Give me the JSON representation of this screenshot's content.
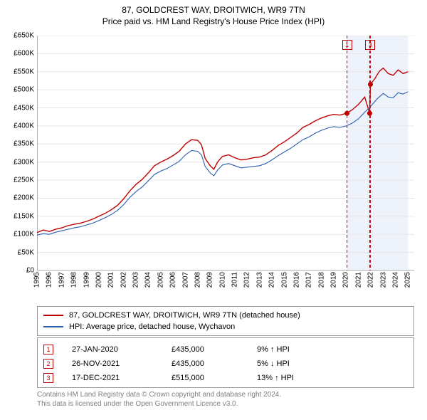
{
  "title": "87, GOLDCREST WAY, DROITWICH, WR9 7TN",
  "subtitle": "Price paid vs. HM Land Registry's House Price Index (HPI)",
  "chart": {
    "type": "line",
    "background_color": "#ffffff",
    "grid_color": "#e6e6e6",
    "axis_color": "#666666",
    "shaded_band": {
      "x_from": 2020.07,
      "x_to": 2025.0,
      "fill": "#eef3fb"
    },
    "x": {
      "min": 1995,
      "max": 2025.5,
      "ticks": [
        1995,
        1996,
        1997,
        1998,
        1999,
        2000,
        2001,
        2002,
        2003,
        2004,
        2005,
        2006,
        2007,
        2008,
        2009,
        2010,
        2011,
        2012,
        2013,
        2014,
        2015,
        2016,
        2017,
        2018,
        2019,
        2020,
        2021,
        2022,
        2023,
        2024,
        2025
      ]
    },
    "y": {
      "min": 0,
      "max": 650000,
      "tick_step": 50000,
      "prefix": "£",
      "suffix": "K",
      "divisor": 1000
    },
    "series": [
      {
        "name": "87, GOLDCREST WAY, DROITWICH, WR9 7TN (detached house)",
        "color": "#c00000",
        "width": 1.4,
        "points": [
          [
            1995,
            105000
          ],
          [
            1995.5,
            112000
          ],
          [
            1996,
            108000
          ],
          [
            1996.5,
            114000
          ],
          [
            1997,
            118000
          ],
          [
            1997.5,
            124000
          ],
          [
            1998,
            128000
          ],
          [
            1998.5,
            131000
          ],
          [
            1999,
            136000
          ],
          [
            1999.5,
            142000
          ],
          [
            2000,
            150000
          ],
          [
            2000.5,
            158000
          ],
          [
            2001,
            168000
          ],
          [
            2001.5,
            180000
          ],
          [
            2002,
            198000
          ],
          [
            2002.5,
            220000
          ],
          [
            2003,
            238000
          ],
          [
            2003.5,
            252000
          ],
          [
            2004,
            270000
          ],
          [
            2004.5,
            290000
          ],
          [
            2005,
            300000
          ],
          [
            2005.5,
            308000
          ],
          [
            2006,
            318000
          ],
          [
            2006.5,
            330000
          ],
          [
            2007,
            350000
          ],
          [
            2007.5,
            362000
          ],
          [
            2008,
            360000
          ],
          [
            2008.3,
            348000
          ],
          [
            2008.6,
            310000
          ],
          [
            2009,
            290000
          ],
          [
            2009.3,
            280000
          ],
          [
            2009.6,
            300000
          ],
          [
            2010,
            316000
          ],
          [
            2010.5,
            320000
          ],
          [
            2011,
            312000
          ],
          [
            2011.5,
            306000
          ],
          [
            2012,
            308000
          ],
          [
            2012.5,
            312000
          ],
          [
            2013,
            314000
          ],
          [
            2013.5,
            320000
          ],
          [
            2014,
            332000
          ],
          [
            2014.5,
            346000
          ],
          [
            2015,
            356000
          ],
          [
            2015.5,
            368000
          ],
          [
            2016,
            380000
          ],
          [
            2016.5,
            396000
          ],
          [
            2017,
            404000
          ],
          [
            2017.5,
            414000
          ],
          [
            2018,
            422000
          ],
          [
            2018.5,
            428000
          ],
          [
            2019,
            432000
          ],
          [
            2019.5,
            430000
          ],
          [
            2020,
            435000
          ],
          [
            2020.5,
            445000
          ],
          [
            2021,
            460000
          ],
          [
            2021.5,
            480000
          ],
          [
            2021.9,
            435000
          ],
          [
            2021.96,
            515000
          ],
          [
            2022.3,
            530000
          ],
          [
            2022.7,
            552000
          ],
          [
            2023,
            560000
          ],
          [
            2023.4,
            545000
          ],
          [
            2023.8,
            540000
          ],
          [
            2024.2,
            555000
          ],
          [
            2024.6,
            545000
          ],
          [
            2025,
            550000
          ]
        ]
      },
      {
        "name": "HPI: Average price, detached house, Wychavon",
        "color": "#2a5db0",
        "width": 1.1,
        "points": [
          [
            1995,
            98000
          ],
          [
            1995.5,
            102000
          ],
          [
            1996,
            100000
          ],
          [
            1996.5,
            106000
          ],
          [
            1997,
            110000
          ],
          [
            1997.5,
            114000
          ],
          [
            1998,
            118000
          ],
          [
            1998.5,
            121000
          ],
          [
            1999,
            126000
          ],
          [
            1999.5,
            131000
          ],
          [
            2000,
            138000
          ],
          [
            2000.5,
            146000
          ],
          [
            2001,
            155000
          ],
          [
            2001.5,
            166000
          ],
          [
            2002,
            182000
          ],
          [
            2002.5,
            202000
          ],
          [
            2003,
            218000
          ],
          [
            2003.5,
            231000
          ],
          [
            2004,
            248000
          ],
          [
            2004.5,
            266000
          ],
          [
            2005,
            275000
          ],
          [
            2005.5,
            282000
          ],
          [
            2006,
            292000
          ],
          [
            2006.5,
            302000
          ],
          [
            2007,
            320000
          ],
          [
            2007.5,
            332000
          ],
          [
            2008,
            330000
          ],
          [
            2008.3,
            320000
          ],
          [
            2008.6,
            288000
          ],
          [
            2009,
            270000
          ],
          [
            2009.3,
            262000
          ],
          [
            2009.6,
            278000
          ],
          [
            2010,
            292000
          ],
          [
            2010.5,
            296000
          ],
          [
            2011,
            290000
          ],
          [
            2011.5,
            284000
          ],
          [
            2012,
            286000
          ],
          [
            2012.5,
            288000
          ],
          [
            2013,
            290000
          ],
          [
            2013.5,
            296000
          ],
          [
            2014,
            306000
          ],
          [
            2014.5,
            318000
          ],
          [
            2015,
            328000
          ],
          [
            2015.5,
            338000
          ],
          [
            2016,
            350000
          ],
          [
            2016.5,
            362000
          ],
          [
            2017,
            370000
          ],
          [
            2017.5,
            380000
          ],
          [
            2018,
            388000
          ],
          [
            2018.5,
            394000
          ],
          [
            2019,
            398000
          ],
          [
            2019.5,
            396000
          ],
          [
            2020,
            400000
          ],
          [
            2020.5,
            408000
          ],
          [
            2021,
            420000
          ],
          [
            2021.5,
            438000
          ],
          [
            2022,
            455000
          ],
          [
            2022.5,
            475000
          ],
          [
            2023,
            490000
          ],
          [
            2023.4,
            480000
          ],
          [
            2023.8,
            478000
          ],
          [
            2024.2,
            492000
          ],
          [
            2024.6,
            488000
          ],
          [
            2025,
            495000
          ]
        ]
      }
    ],
    "event_lines": {
      "color": "#c00000",
      "dash": "4 3",
      "x": [
        2020.07,
        2021.9,
        2021.96
      ]
    },
    "event_markers": [
      {
        "label": "1",
        "x": 2020.07
      },
      {
        "label": "3",
        "x": 2021.96
      }
    ],
    "sale_points": {
      "color": "#c00000",
      "radius": 3.5,
      "points": [
        [
          2020.07,
          435000
        ],
        [
          2021.9,
          435000
        ],
        [
          2021.96,
          515000
        ]
      ]
    }
  },
  "legend": {
    "items": [
      {
        "color": "#c00000",
        "label": "87, GOLDCREST WAY, DROITWICH, WR9 7TN (detached house)"
      },
      {
        "color": "#2a5db0",
        "label": "HPI: Average price, detached house, Wychavon"
      }
    ]
  },
  "sales": [
    {
      "n": "1",
      "date": "27-JAN-2020",
      "price": "£435,000",
      "pct": "9% ↑ HPI"
    },
    {
      "n": "2",
      "date": "26-NOV-2021",
      "price": "£435,000",
      "pct": "5% ↓ HPI"
    },
    {
      "n": "3",
      "date": "17-DEC-2021",
      "price": "£515,000",
      "pct": "13% ↑ HPI"
    }
  ],
  "footer": {
    "line1": "Contains HM Land Registry data © Crown copyright and database right 2024.",
    "line2": "This data is licensed under the Open Government Licence v3.0."
  }
}
